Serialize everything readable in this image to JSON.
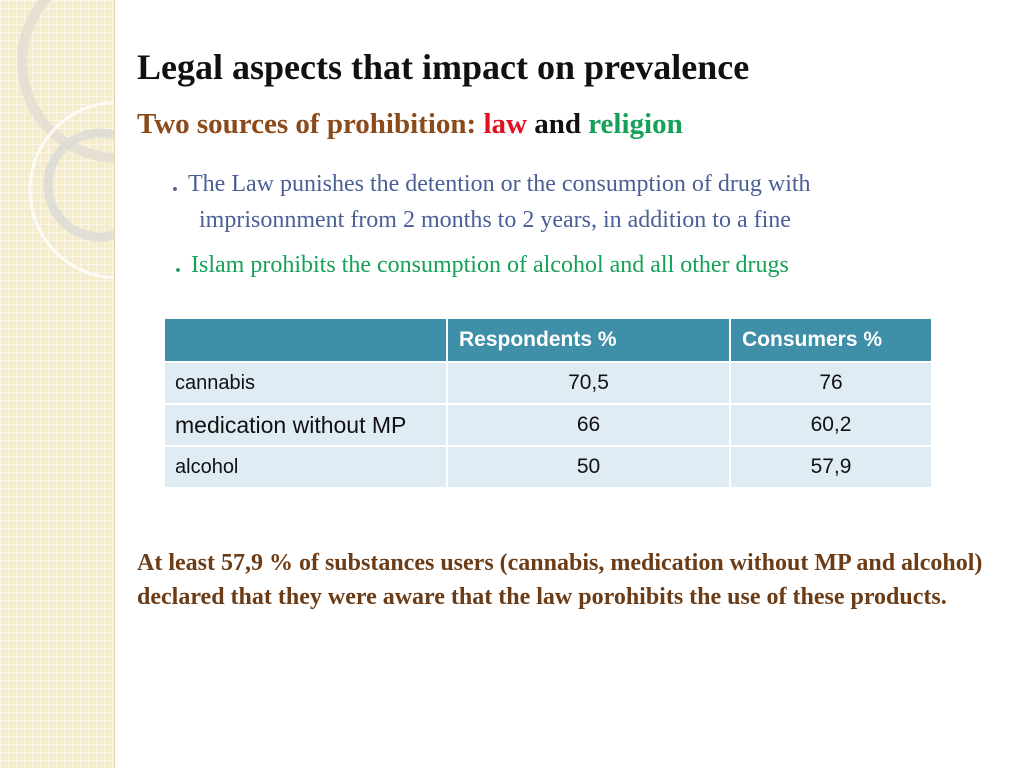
{
  "slide": {
    "title": "Legal aspects that impact on prevalence",
    "subtitle": {
      "prefix": "Two sources of prohibition:",
      "word_law": "law",
      "word_and": "and",
      "word_religion": "religion"
    },
    "bullets": [
      {
        "line1": "The Law punishes the detention or the consumption of drug with",
        "line2": "imprisonnment from 2 months to 2 years, in addition to a fine"
      },
      {
        "text": "Islam prohibits the consumption of alcohol and all other drugs"
      }
    ],
    "bullet_glyph": ".",
    "table": {
      "headers": [
        "",
        "Respondents %",
        "Consumers %"
      ],
      "rows": [
        [
          "cannabis",
          "70,5",
          "76"
        ],
        [
          "medication without MP",
          "66",
          "60,2"
        ],
        [
          "alcohol",
          "50",
          "57,9"
        ]
      ]
    },
    "conclusion": "At least 57,9 % of substances users (cannabis, medication without MP and alcohol) declared that they were aware that the law porohibits the use of these products."
  },
  "colors": {
    "title": "#111111",
    "subtitle_prefix": "#8b4a1a",
    "law": "#e0101f",
    "and": "#111111",
    "religion": "#16a058",
    "bullet1": "#4b5f97",
    "bullet2": "#16a058",
    "table_header": "#3f8fa9",
    "table_cell": "#e0ecf4",
    "conclusion": "#6b3c16",
    "side_band": "#f4ecca"
  }
}
